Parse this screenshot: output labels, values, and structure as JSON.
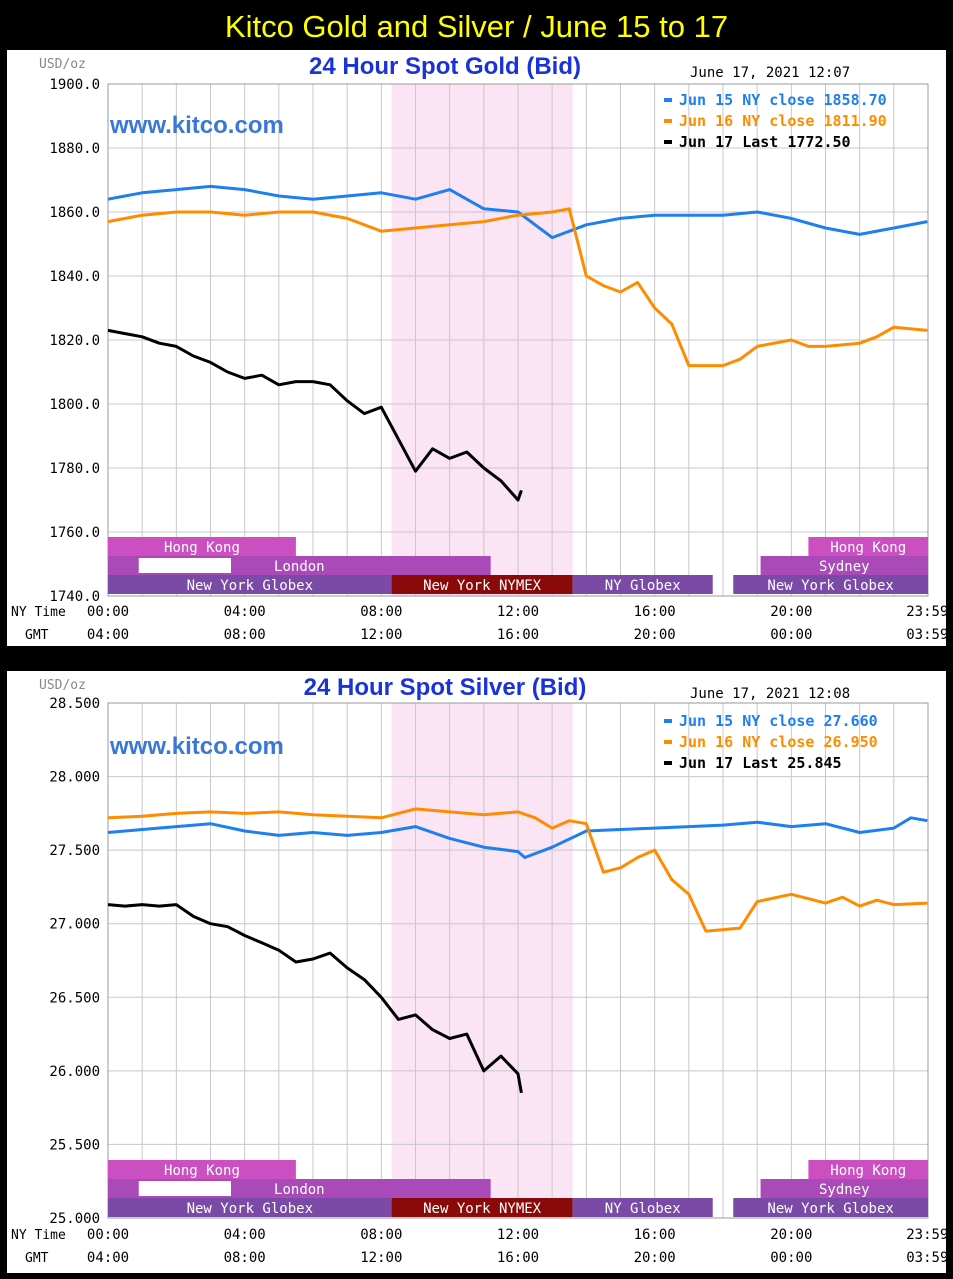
{
  "page_title": "Kitco Gold and Silver  / June 15 to 17",
  "x_axis": {
    "ny_time_label": "NY Time",
    "gmt_label": "GMT",
    "ny_ticks": [
      "00:00",
      "04:00",
      "08:00",
      "12:00",
      "16:00",
      "20:00",
      "23:59"
    ],
    "gmt_ticks": [
      "04:00",
      "08:00",
      "12:00",
      "16:00",
      "20:00",
      "00:00",
      "03:59"
    ]
  },
  "sessions": [
    {
      "label": "Hong Kong",
      "color": "#cc4fc2"
    },
    {
      "label": "Hong Kong",
      "color": "#cc4fc2"
    },
    {
      "label": "London",
      "color": "#aa4ab8"
    },
    {
      "label": "Sydney",
      "color": "#aa4ab8"
    },
    {
      "label": "New York Globex",
      "color": "#7a4aa6"
    },
    {
      "label": "New York NYMEX",
      "color": "#8a0a0a"
    },
    {
      "label": "NY Globex",
      "color": "#7a4aa6"
    },
    {
      "label": "New York Globex",
      "color": "#7a4aa6"
    }
  ],
  "colors": {
    "jun15": "#1e7ff0",
    "jun16": "#ff8c00",
    "jun17": "#000000",
    "nymex_band": "#fbe4f4",
    "title": "#1a33d9",
    "brand": "#3a78d8"
  },
  "chart_data": [
    {
      "type": "line",
      "title": "24 Hour Spot Gold (Bid)",
      "unit": "USD/oz",
      "timestamp": "June 17, 2021 12:07",
      "watermark": "www.kitco.com",
      "ylim": [
        1740,
        1900
      ],
      "yticks": [
        "1900.0",
        "1880.0",
        "1860.0",
        "1840.0",
        "1820.0",
        "1800.0",
        "1780.0",
        "1760.0",
        "1740.0"
      ],
      "xlim": [
        0,
        24
      ],
      "grid": true,
      "legend_position": "top-right",
      "legend": [
        "Jun 15 NY close 1858.70",
        "Jun 16 NY close 1811.90",
        "Jun 17 Last 1772.50"
      ],
      "series": [
        {
          "name": "Jun 15 NY close 1858.70",
          "color": "#1e7ff0",
          "x": [
            0,
            1,
            2,
            3,
            4,
            5,
            6,
            7,
            8,
            9,
            10,
            11,
            12,
            13,
            14,
            15,
            16,
            17,
            18,
            19,
            20,
            21,
            22,
            23,
            23.98
          ],
          "y": [
            1864,
            1866,
            1867,
            1868,
            1867,
            1865,
            1864,
            1865,
            1866,
            1864,
            1867,
            1861,
            1860,
            1852,
            1856,
            1858,
            1859,
            1859,
            1859,
            1860,
            1858,
            1855,
            1853,
            1855,
            1857
          ]
        },
        {
          "name": "Jun 16 NY close 1811.90",
          "color": "#ff8c00",
          "x": [
            0,
            1,
            2,
            3,
            4,
            5,
            6,
            7,
            8,
            9,
            10,
            11,
            12,
            13,
            13.5,
            14,
            14.5,
            15,
            15.5,
            16,
            16.5,
            17,
            17.5,
            18,
            18.5,
            19,
            20,
            20.5,
            21,
            22,
            22.5,
            23,
            23.98
          ],
          "y": [
            1857,
            1859,
            1860,
            1860,
            1859,
            1860,
            1860,
            1858,
            1854,
            1855,
            1856,
            1857,
            1859,
            1860,
            1861,
            1840,
            1837,
            1835,
            1838,
            1830,
            1825,
            1812,
            1812,
            1812,
            1814,
            1818,
            1820,
            1818,
            1818,
            1819,
            1821,
            1824,
            1823
          ]
        },
        {
          "name": "Jun 17 Last 1772.50",
          "color": "#000000",
          "x": [
            0,
            0.5,
            1,
            1.5,
            2,
            2.5,
            3,
            3.5,
            4,
            4.5,
            5,
            5.5,
            6,
            6.5,
            7,
            7.5,
            8,
            8.5,
            9,
            9.5,
            10,
            10.5,
            11,
            11.5,
            12,
            12.1
          ],
          "y": [
            1823,
            1822,
            1821,
            1819,
            1818,
            1815,
            1813,
            1810,
            1808,
            1809,
            1806,
            1807,
            1807,
            1806,
            1801,
            1797,
            1799,
            1789,
            1779,
            1786,
            1783,
            1785,
            1780,
            1776,
            1770,
            1773
          ]
        }
      ]
    },
    {
      "type": "line",
      "title": "24 Hour Spot Silver (Bid)",
      "unit": "USD/oz",
      "timestamp": "June 17, 2021 12:08",
      "watermark": "www.kitco.com",
      "ylim": [
        25,
        28.5
      ],
      "yticks": [
        "28.500",
        "28.000",
        "27.500",
        "27.000",
        "26.500",
        "26.000",
        "25.500",
        "25.000"
      ],
      "xlim": [
        0,
        24
      ],
      "grid": true,
      "legend_position": "top-right",
      "legend": [
        "Jun 15 NY close 27.660",
        "Jun 16 NY close 26.950",
        "Jun 17 Last 25.845"
      ],
      "series": [
        {
          "name": "Jun 15 NY close 27.660",
          "color": "#1e7ff0",
          "x": [
            0,
            1,
            2,
            3,
            4,
            5,
            6,
            7,
            8,
            9,
            10,
            11,
            12,
            12.2,
            13,
            14,
            15,
            16,
            17,
            18,
            19,
            20,
            21,
            22,
            23,
            23.5,
            23.98
          ],
          "y": [
            27.62,
            27.64,
            27.66,
            27.68,
            27.63,
            27.6,
            27.62,
            27.6,
            27.62,
            27.66,
            27.58,
            27.52,
            27.49,
            27.45,
            27.52,
            27.63,
            27.64,
            27.65,
            27.66,
            27.67,
            27.69,
            27.66,
            27.68,
            27.62,
            27.65,
            27.72,
            27.7
          ]
        },
        {
          "name": "Jun 16 NY close 26.950",
          "color": "#ff8c00",
          "x": [
            0,
            1,
            2,
            3,
            4,
            5,
            6,
            7,
            8,
            9,
            10,
            11,
            12,
            12.5,
            13,
            13.5,
            14,
            14.5,
            15,
            15.5,
            16,
            16.5,
            17,
            17.5,
            18,
            18.5,
            19,
            20,
            20.5,
            21,
            21.5,
            22,
            22.5,
            23,
            23.98
          ],
          "y": [
            27.72,
            27.73,
            27.75,
            27.76,
            27.75,
            27.76,
            27.74,
            27.73,
            27.72,
            27.78,
            27.76,
            27.74,
            27.76,
            27.72,
            27.65,
            27.7,
            27.68,
            27.35,
            27.38,
            27.45,
            27.5,
            27.3,
            27.2,
            26.95,
            26.96,
            26.97,
            27.15,
            27.2,
            27.17,
            27.14,
            27.18,
            27.12,
            27.16,
            27.13,
            27.14
          ]
        },
        {
          "name": "Jun 17 Last 25.845",
          "color": "#000000",
          "x": [
            0,
            0.5,
            1,
            1.5,
            2,
            2.5,
            3,
            3.5,
            4,
            4.5,
            5,
            5.5,
            6,
            6.5,
            7,
            7.5,
            8,
            8.5,
            9,
            9.5,
            10,
            10.5,
            11,
            11.5,
            12,
            12.1
          ],
          "y": [
            27.13,
            27.12,
            27.13,
            27.12,
            27.13,
            27.05,
            27.0,
            26.98,
            26.92,
            26.87,
            26.82,
            26.74,
            26.76,
            26.8,
            26.7,
            26.62,
            26.5,
            26.35,
            26.38,
            26.28,
            26.22,
            26.25,
            26.0,
            26.1,
            25.98,
            25.85
          ]
        }
      ]
    }
  ]
}
